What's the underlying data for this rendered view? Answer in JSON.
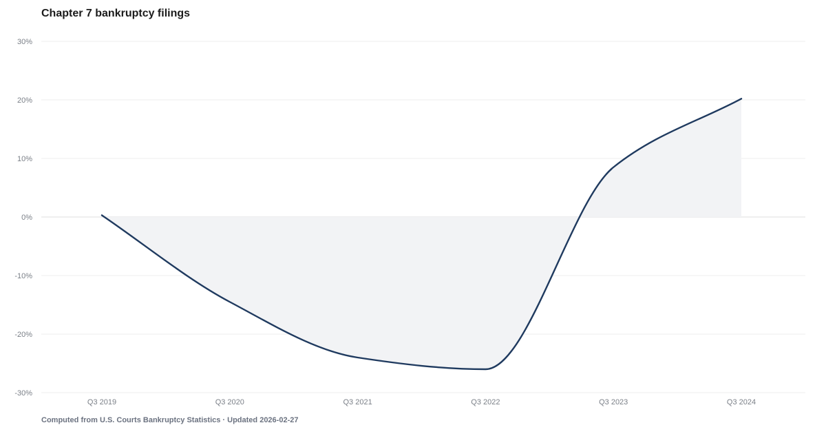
{
  "chart_data": {
    "type": "area",
    "title": "Chapter 7 bankruptcy filings",
    "xlabel": "",
    "ylabel": "",
    "categories": [
      "Q3 2019",
      "Q3 2020",
      "Q3 2021",
      "Q3 2022",
      "Q3 2023",
      "Q3 2024"
    ],
    "series": [
      {
        "values": [
          0.3,
          -14.5,
          -24.0,
          -26.0,
          8.5,
          20.2
        ]
      }
    ],
    "ylim": [
      -30,
      30
    ],
    "yticks": [
      30,
      20,
      10,
      0,
      -10,
      -20,
      -30
    ],
    "ytick_labels": [
      "30%",
      "20%",
      "10%",
      "0%",
      "-10%",
      "-20%",
      "-30%"
    ],
    "grid": true,
    "legend": "none",
    "colors": {
      "line": "#1f3a5f",
      "area": "#f2f3f5",
      "grid": "#eeeeee",
      "zero_line": "#dddddd"
    }
  },
  "footer": {
    "source": "Computed from U.S. Courts Bankruptcy Statistics · Updated 2026-02-27"
  }
}
